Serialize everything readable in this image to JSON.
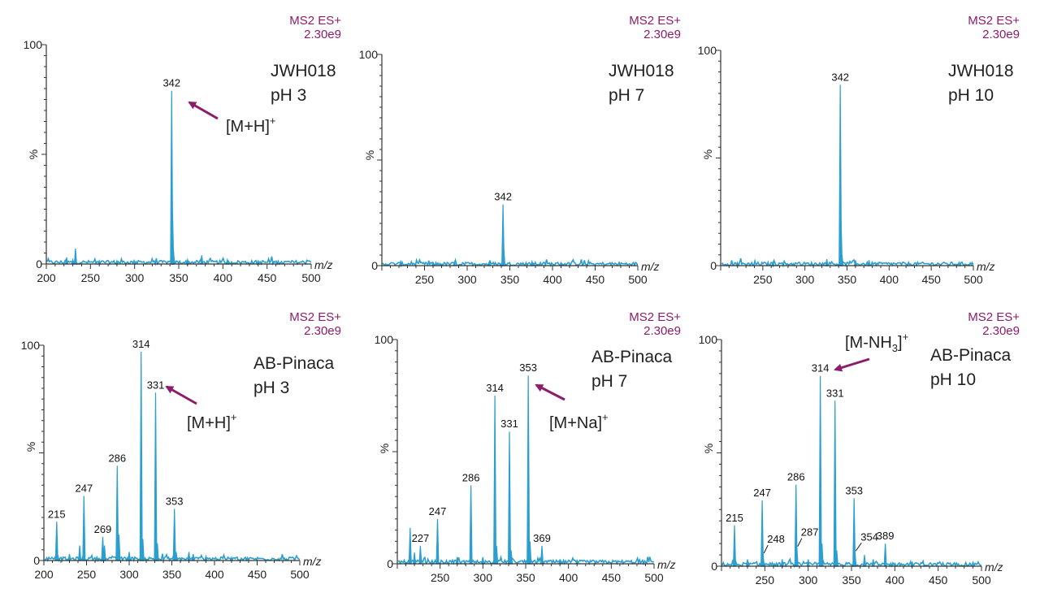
{
  "colors": {
    "trace": "#2a9fd0",
    "header": "#8b1d6b",
    "arrow": "#8b1d6b",
    "axis": "#333333",
    "text": "#222222"
  },
  "chart_data": [
    {
      "type": "line",
      "title": "",
      "sample": "JWH018",
      "ph_label": "pH 3",
      "header_line1": "MS2 ES+",
      "header_line2": "2.30e9",
      "xlabel": "m/z",
      "ylabel": "%",
      "xlim": [
        200,
        500
      ],
      "ylim": [
        0,
        100
      ],
      "x_ticks": [
        200,
        250,
        300,
        350,
        400,
        450,
        500
      ],
      "y_ticks": [
        0,
        100
      ],
      "peaks": [
        {
          "x": 223,
          "y": 3
        },
        {
          "x": 230,
          "y": 2
        },
        {
          "x": 233,
          "y": 7
        },
        {
          "x": 260,
          "y": 1.5
        },
        {
          "x": 280,
          "y": 1.5
        },
        {
          "x": 342,
          "y": 79
        },
        {
          "x": 343,
          "y": 23
        },
        {
          "x": 344,
          "y": 6
        },
        {
          "x": 360,
          "y": 2
        },
        {
          "x": 376,
          "y": 4
        },
        {
          "x": 405,
          "y": 2
        },
        {
          "x": 440,
          "y": 1.5
        }
      ],
      "labels": [
        {
          "x": 342,
          "y": 79,
          "text": "342"
        }
      ],
      "annotation": {
        "main": "[M+H]",
        "sup": "+",
        "sub": ""
      }
    },
    {
      "type": "line",
      "title": "",
      "sample": "JWH018",
      "ph_label": "pH 7",
      "header_line1": "MS2 ES+",
      "header_line2": "2.30e9",
      "xlabel": "m/z",
      "ylabel": "%",
      "xlim": [
        200,
        500
      ],
      "ylim": [
        0,
        100
      ],
      "x_ticks": [
        250,
        300,
        350,
        400,
        450,
        500
      ],
      "y_ticks": [
        0,
        100
      ],
      "peaks": [
        {
          "x": 222,
          "y": 2
        },
        {
          "x": 260,
          "y": 1.5
        },
        {
          "x": 285,
          "y": 1.5
        },
        {
          "x": 326,
          "y": 2
        },
        {
          "x": 342,
          "y": 29
        },
        {
          "x": 343,
          "y": 8
        },
        {
          "x": 376,
          "y": 2
        },
        {
          "x": 410,
          "y": 1.5
        }
      ],
      "labels": [
        {
          "x": 342,
          "y": 29,
          "text": "342"
        }
      ],
      "annotation": null
    },
    {
      "type": "line",
      "title": "",
      "sample": "JWH018",
      "ph_label": "pH 10",
      "header_line1": "MS2 ES+",
      "header_line2": "2.30e9",
      "xlabel": "m/z",
      "ylabel": "%",
      "xlim": [
        200,
        500
      ],
      "ylim": [
        0,
        100
      ],
      "x_ticks": [
        250,
        300,
        350,
        400,
        450,
        500
      ],
      "y_ticks": [
        0,
        100
      ],
      "peaks": [
        {
          "x": 220,
          "y": 1.5
        },
        {
          "x": 262,
          "y": 1.5
        },
        {
          "x": 326,
          "y": 3
        },
        {
          "x": 342,
          "y": 84
        },
        {
          "x": 343,
          "y": 20
        },
        {
          "x": 344,
          "y": 5
        },
        {
          "x": 360,
          "y": 2.5
        },
        {
          "x": 376,
          "y": 2.5
        }
      ],
      "labels": [
        {
          "x": 342,
          "y": 84,
          "text": "342"
        }
      ],
      "annotation": null
    },
    {
      "type": "line",
      "title": "",
      "sample": "AB-Pinaca",
      "ph_label": "pH 3",
      "header_line1": "MS2 ES+",
      "header_line2": "2.30e9",
      "xlabel": "m/z",
      "ylabel": "%",
      "xlim": [
        200,
        500
      ],
      "ylim": [
        0,
        100
      ],
      "x_ticks": [
        200,
        250,
        300,
        350,
        400,
        450,
        500
      ],
      "y_ticks": [
        0,
        100
      ],
      "peaks": [
        {
          "x": 215,
          "y": 18
        },
        {
          "x": 230,
          "y": 3
        },
        {
          "x": 242,
          "y": 7
        },
        {
          "x": 247,
          "y": 30
        },
        {
          "x": 269,
          "y": 11
        },
        {
          "x": 271,
          "y": 7
        },
        {
          "x": 286,
          "y": 44
        },
        {
          "x": 288,
          "y": 12
        },
        {
          "x": 300,
          "y": 4
        },
        {
          "x": 314,
          "y": 97
        },
        {
          "x": 316,
          "y": 10
        },
        {
          "x": 331,
          "y": 78
        },
        {
          "x": 333,
          "y": 8
        },
        {
          "x": 353,
          "y": 24
        },
        {
          "x": 355,
          "y": 4
        },
        {
          "x": 370,
          "y": 4
        },
        {
          "x": 375,
          "y": 3
        },
        {
          "x": 390,
          "y": 2
        },
        {
          "x": 420,
          "y": 1.5
        }
      ],
      "labels": [
        {
          "x": 215,
          "y": 18,
          "text": "215"
        },
        {
          "x": 247,
          "y": 30,
          "text": "247"
        },
        {
          "x": 269,
          "y": 11,
          "text": "269"
        },
        {
          "x": 286,
          "y": 44,
          "text": "286"
        },
        {
          "x": 314,
          "y": 97,
          "text": "314"
        },
        {
          "x": 331,
          "y": 78,
          "text": "331"
        },
        {
          "x": 353,
          "y": 24,
          "text": "353"
        }
      ],
      "annotation": {
        "main": "[M+H]",
        "sup": "+",
        "sub": ""
      }
    },
    {
      "type": "line",
      "title": "",
      "sample": "AB-Pinaca",
      "ph_label": "pH 7",
      "header_line1": "MS2 ES+",
      "header_line2": "2.30e9",
      "xlabel": "m/z",
      "ylabel": "%",
      "xlim": [
        200,
        500
      ],
      "ylim": [
        0,
        100
      ],
      "x_ticks": [
        250,
        300,
        350,
        400,
        450,
        500
      ],
      "y_ticks": [
        0,
        100
      ],
      "peaks": [
        {
          "x": 215,
          "y": 16
        },
        {
          "x": 220,
          "y": 5
        },
        {
          "x": 227,
          "y": 8
        },
        {
          "x": 247,
          "y": 20
        },
        {
          "x": 270,
          "y": 3
        },
        {
          "x": 286,
          "y": 35
        },
        {
          "x": 300,
          "y": 3
        },
        {
          "x": 314,
          "y": 75
        },
        {
          "x": 316,
          "y": 8
        },
        {
          "x": 331,
          "y": 59
        },
        {
          "x": 333,
          "y": 6
        },
        {
          "x": 353,
          "y": 84
        },
        {
          "x": 355,
          "y": 10
        },
        {
          "x": 369,
          "y": 8
        },
        {
          "x": 390,
          "y": 2
        },
        {
          "x": 410,
          "y": 1.5
        }
      ],
      "labels": [
        {
          "x": 227,
          "y": 8,
          "text": "227"
        },
        {
          "x": 247,
          "y": 20,
          "text": "247"
        },
        {
          "x": 286,
          "y": 35,
          "text": "286"
        },
        {
          "x": 314,
          "y": 75,
          "text": "314"
        },
        {
          "x": 331,
          "y": 59,
          "text": "331"
        },
        {
          "x": 353,
          "y": 84,
          "text": "353"
        },
        {
          "x": 369,
          "y": 8,
          "text": "369"
        }
      ],
      "annotation": {
        "main": "[M+Na]",
        "sup": "+",
        "sub": ""
      }
    },
    {
      "type": "line",
      "title": "",
      "sample": "AB-Pinaca",
      "ph_label": "pH 10",
      "header_line1": "MS2 ES+",
      "header_line2": "2.30e9",
      "xlabel": "m/z",
      "ylabel": "%",
      "xlim": [
        200,
        500
      ],
      "ylim": [
        0,
        100
      ],
      "x_ticks": [
        250,
        300,
        350,
        400,
        450,
        500
      ],
      "y_ticks": [
        0,
        100
      ],
      "peaks": [
        {
          "x": 215,
          "y": 18
        },
        {
          "x": 230,
          "y": 3
        },
        {
          "x": 247,
          "y": 29
        },
        {
          "x": 248,
          "y": 5
        },
        {
          "x": 270,
          "y": 3
        },
        {
          "x": 286,
          "y": 36
        },
        {
          "x": 287,
          "y": 8
        },
        {
          "x": 300,
          "y": 3
        },
        {
          "x": 314,
          "y": 84
        },
        {
          "x": 316,
          "y": 10
        },
        {
          "x": 331,
          "y": 73
        },
        {
          "x": 333,
          "y": 7
        },
        {
          "x": 353,
          "y": 30
        },
        {
          "x": 354,
          "y": 6
        },
        {
          "x": 365,
          "y": 5
        },
        {
          "x": 375,
          "y": 3
        },
        {
          "x": 389,
          "y": 10
        },
        {
          "x": 420,
          "y": 2
        }
      ],
      "labels": [
        {
          "x": 215,
          "y": 18,
          "text": "215"
        },
        {
          "x": 247,
          "y": 29,
          "text": "247"
        },
        {
          "x": 248,
          "y": 5,
          "text": "248"
        },
        {
          "x": 286,
          "y": 36,
          "text": "286"
        },
        {
          "x": 287,
          "y": 8,
          "text": "287"
        },
        {
          "x": 314,
          "y": 84,
          "text": "314"
        },
        {
          "x": 331,
          "y": 73,
          "text": "331"
        },
        {
          "x": 353,
          "y": 30,
          "text": "353"
        },
        {
          "x": 354,
          "y": 6,
          "text": "354"
        },
        {
          "x": 389,
          "y": 10,
          "text": "389"
        }
      ],
      "annotation": {
        "main": "[M-NH",
        "sup": "+",
        "sub": "3"
      }
    }
  ]
}
